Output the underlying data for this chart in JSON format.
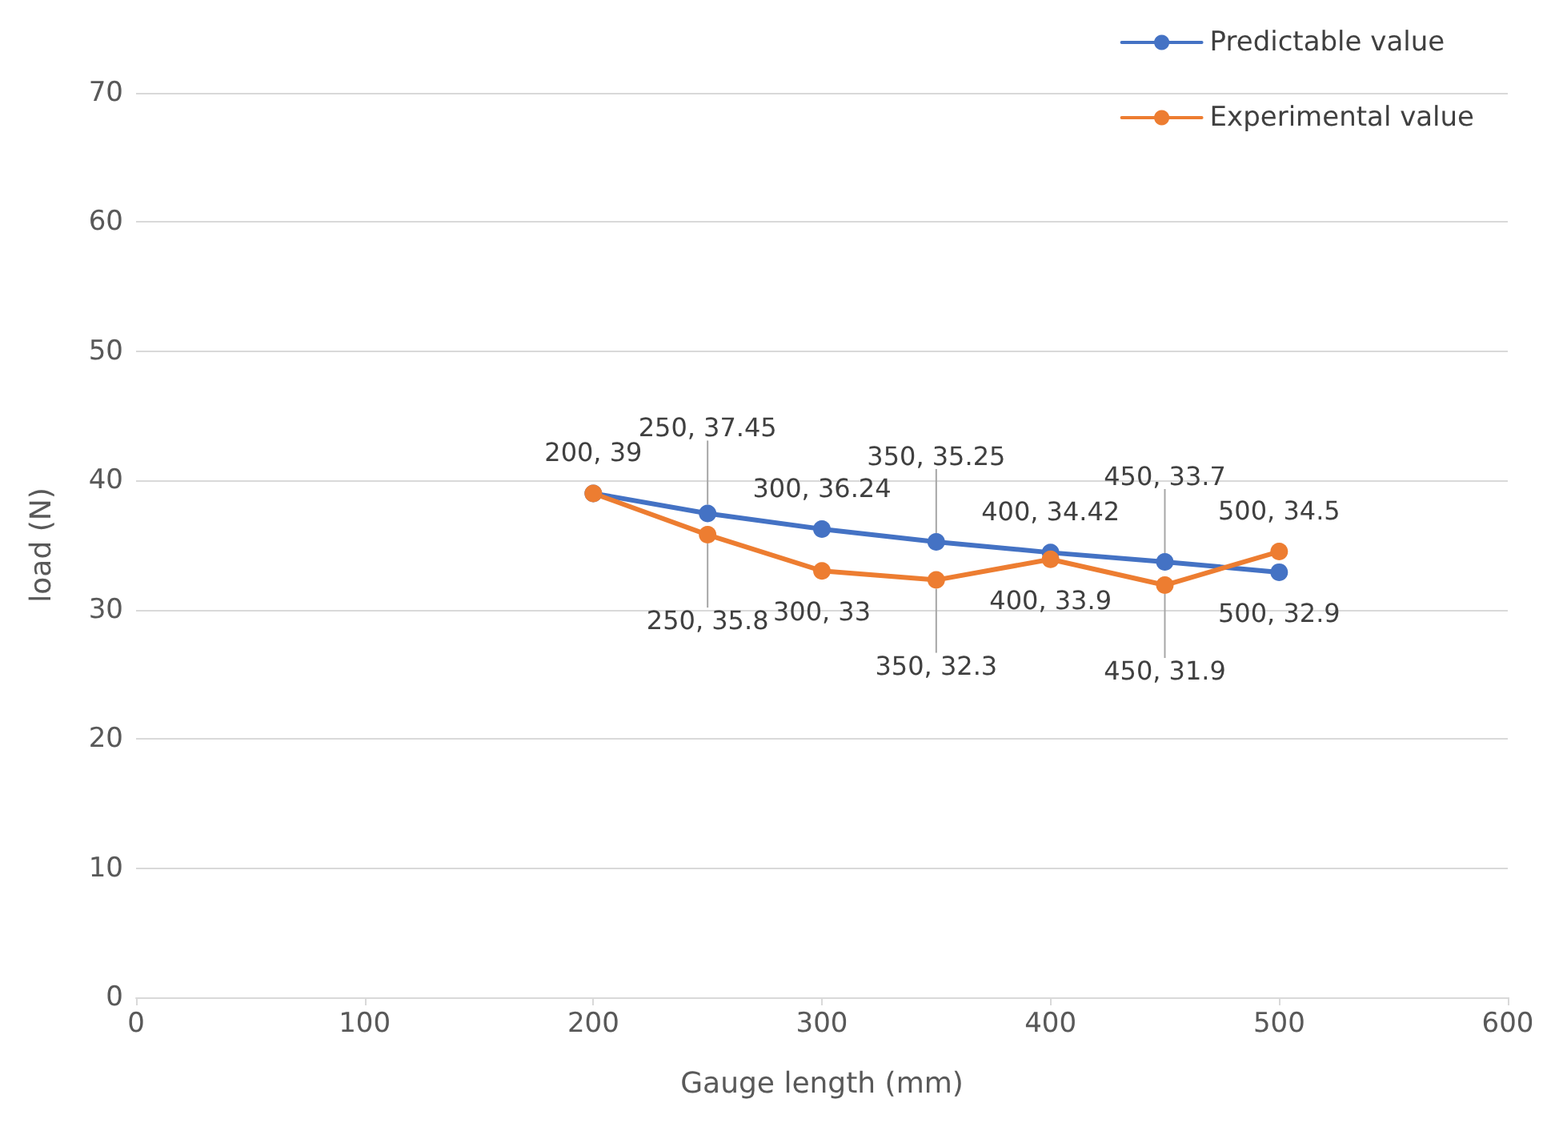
{
  "chart_data": {
    "type": "line",
    "xlabel": "Gauge length (mm)",
    "ylabel": "load (N)",
    "x": [
      200,
      250,
      300,
      350,
      400,
      450,
      500
    ],
    "series": [
      {
        "name": "Predictable value",
        "color": "#4472c4",
        "values": [
          39,
          37.45,
          36.24,
          35.25,
          34.42,
          33.7,
          32.9
        ],
        "value_labels": [
          "200, 39",
          "250, 37.45",
          "300, 36.24",
          "350, 35.25",
          "400, 34.42",
          "450, 33.7",
          "500, 32.9"
        ]
      },
      {
        "name": "Experimental value",
        "color": "#ed7d31",
        "values": [
          39,
          35.8,
          33,
          32.3,
          33.9,
          31.9,
          34.5
        ],
        "value_labels": [
          null,
          "250, 35.8",
          "300, 33",
          "350, 32.3",
          "400, 33.9",
          "450, 31.9",
          "500, 34.5"
        ]
      }
    ],
    "xlim": [
      0,
      600
    ],
    "xticks": [
      0,
      100,
      200,
      300,
      400,
      500,
      600
    ],
    "ylim": [
      0,
      70
    ],
    "yticks": [
      0,
      10,
      20,
      30,
      40,
      50,
      60,
      70
    ],
    "grid": "y",
    "legend": "top right",
    "marker": "circle",
    "line_style": "solid"
  }
}
